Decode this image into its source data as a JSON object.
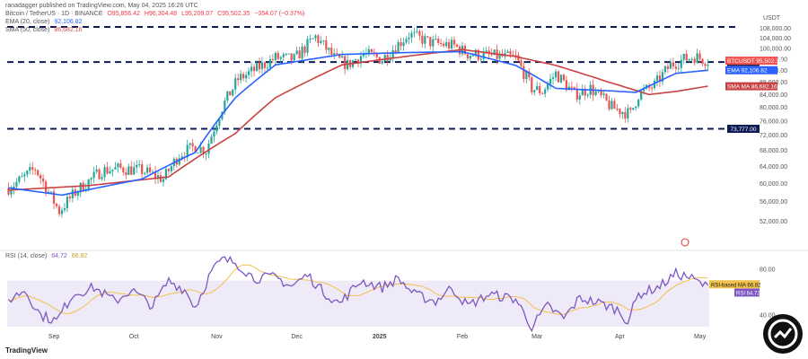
{
  "header": {
    "published": "ranadagger published on TradingView.com, May 04, 2025 16:26 UTC",
    "symbol": "Bitcoin / TetherUS · 1D · BINANCE",
    "o": "O95,856.42",
    "h": "H96,304.48",
    "l": "L95,209.07",
    "c": "C95,502.35",
    "chg": "−354.07 (−0.37%)",
    "ema_label": "EMA (20, close)",
    "ema_value": "92,106.82",
    "sma_label": "SMA (50, close)",
    "sma_value": "86,682.16",
    "rsi_label": "RSI (14, close)",
    "rsi_value": "64.72",
    "rsi_ma_value": "66.82"
  },
  "footer": {
    "brand": "TradingView"
  },
  "colors": {
    "up": "#26a69a",
    "down": "#ef5350",
    "ema": "#2962ff",
    "sma": "#c84343",
    "rsi": "#7e57c2",
    "rsi_ma": "#f0c14b"
  },
  "chart_data": [
    {
      "type": "candlestick",
      "title": "Bitcoin / TetherUS · 1D · BINANCE",
      "currency": "USDT",
      "scale": "log",
      "ylim": [
        48000,
        110000
      ],
      "y_ticks": [
        52000,
        56000,
        60000,
        64000,
        68000,
        72000,
        76000,
        80000,
        84000,
        88000,
        92000,
        96000,
        100000,
        104000,
        108000
      ],
      "y_tick_labels": [
        "52,000.00",
        "56,000.00",
        "60,000.00",
        "64,000.00",
        "68,000.00",
        "72,000.00",
        "76,000.00",
        "80,000.00",
        "84,000.00",
        "88,000.00",
        "92,000.00",
        "96,000.00",
        "100,000.00",
        "104,000.00",
        "108,000.00"
      ],
      "x_ticks": [
        "Sep",
        "Oct",
        "Nov",
        "Dec",
        "2025",
        "Feb",
        "Mar",
        "Apr",
        "May"
      ],
      "x_tick_days": [
        17,
        47,
        78,
        108,
        139,
        170,
        198,
        229,
        259
      ],
      "support_lines": [
        {
          "value": 108500,
          "label": ""
        },
        {
          "value": 95000,
          "label": "95,000.00"
        },
        {
          "value": 73777,
          "label": "73,777.00"
        }
      ],
      "last_price_tag": {
        "label": "BTCUSDT",
        "price": "95,502.35",
        "change": "+65.97%"
      },
      "ema_tag": {
        "label": "EMA",
        "price": "92,106.82"
      },
      "sma_tag": {
        "label": "SMA MA",
        "price": "86,682.16"
      },
      "series": [
        {
          "name": "EMA (20, close)",
          "anchors": [
            [
              0,
              59000
            ],
            [
              20,
              57400
            ],
            [
              50,
              61000
            ],
            [
              70,
              67500
            ],
            [
              85,
              83000
            ],
            [
              100,
              94000
            ],
            [
              125,
              97800
            ],
            [
              150,
              98500
            ],
            [
              170,
              98800
            ],
            [
              190,
              93800
            ],
            [
              205,
              86000
            ],
            [
              225,
              85200
            ],
            [
              235,
              84700
            ],
            [
              250,
              91000
            ],
            [
              262,
              92100
            ]
          ]
        },
        {
          "name": "SMA (50, close)",
          "anchors": [
            [
              0,
              58500
            ],
            [
              30,
              59500
            ],
            [
              60,
              61500
            ],
            [
              85,
              72500
            ],
            [
              100,
              83000
            ],
            [
              125,
              94000
            ],
            [
              150,
              97200
            ],
            [
              170,
              99600
            ],
            [
              190,
              97000
            ],
            [
              205,
              93800
            ],
            [
              225,
              88000
            ],
            [
              240,
              84000
            ],
            [
              250,
              85000
            ],
            [
              262,
              86700
            ]
          ]
        }
      ],
      "close_anchors": [
        [
          0,
          59000
        ],
        [
          5,
          61000
        ],
        [
          10,
          63500
        ],
        [
          16,
          57000
        ],
        [
          19,
          54000
        ],
        [
          25,
          58000
        ],
        [
          35,
          63000
        ],
        [
          42,
          63500
        ],
        [
          50,
          63000
        ],
        [
          58,
          61000
        ],
        [
          64,
          67000
        ],
        [
          70,
          69000
        ],
        [
          74,
          68000
        ],
        [
          80,
          80000
        ],
        [
          86,
          89000
        ],
        [
          90,
          91000
        ],
        [
          100,
          96500
        ],
        [
          107,
          96000
        ],
        [
          115,
          104500
        ],
        [
          122,
          96500
        ],
        [
          127,
          94000
        ],
        [
          133,
          98000
        ],
        [
          140,
          96000
        ],
        [
          150,
          105500
        ],
        [
          159,
          102000
        ],
        [
          167,
          101000
        ],
        [
          172,
          98000
        ],
        [
          178,
          97500
        ],
        [
          190,
          96500
        ],
        [
          196,
          86000
        ],
        [
          200,
          85000
        ],
        [
          205,
          91000
        ],
        [
          212,
          84000
        ],
        [
          218,
          86000
        ],
        [
          226,
          80000
        ],
        [
          233,
          78000
        ],
        [
          236,
          84000
        ],
        [
          242,
          87000
        ],
        [
          248,
          94000
        ],
        [
          253,
          96000
        ],
        [
          257,
          97000
        ],
        [
          262,
          95500
        ]
      ]
    },
    {
      "type": "line",
      "title": "RSI (14, close)",
      "ylim": [
        30,
        90
      ],
      "y_ticks": [
        40,
        60,
        80
      ],
      "y_tick_labels": [
        "40.00",
        "",
        "80.00"
      ],
      "band": [
        30,
        70
      ],
      "ma_tag": {
        "label": "RSI-based MA",
        "value": "66.82"
      },
      "rsi_tag": {
        "label": "RSI",
        "value": "64.72"
      },
      "anchors": [
        [
          0,
          53
        ],
        [
          6,
          62
        ],
        [
          12,
          40
        ],
        [
          18,
          35
        ],
        [
          24,
          58
        ],
        [
          32,
          64
        ],
        [
          40,
          52
        ],
        [
          46,
          62
        ],
        [
          54,
          48
        ],
        [
          60,
          70
        ],
        [
          66,
          62
        ],
        [
          70,
          47
        ],
        [
          76,
          78
        ],
        [
          80,
          88
        ],
        [
          85,
          86
        ],
        [
          92,
          72
        ],
        [
          100,
          73
        ],
        [
          106,
          65
        ],
        [
          112,
          75
        ],
        [
          118,
          60
        ],
        [
          124,
          50
        ],
        [
          132,
          70
        ],
        [
          140,
          64
        ],
        [
          146,
          72
        ],
        [
          152,
          58
        ],
        [
          160,
          52
        ],
        [
          166,
          64
        ],
        [
          172,
          48
        ],
        [
          180,
          58
        ],
        [
          190,
          54
        ],
        [
          196,
          30
        ],
        [
          202,
          48
        ],
        [
          208,
          37
        ],
        [
          214,
          55
        ],
        [
          222,
          50
        ],
        [
          228,
          45
        ],
        [
          232,
          35
        ],
        [
          236,
          58
        ],
        [
          244,
          65
        ],
        [
          250,
          76
        ],
        [
          255,
          73
        ],
        [
          262,
          64
        ]
      ]
    }
  ]
}
